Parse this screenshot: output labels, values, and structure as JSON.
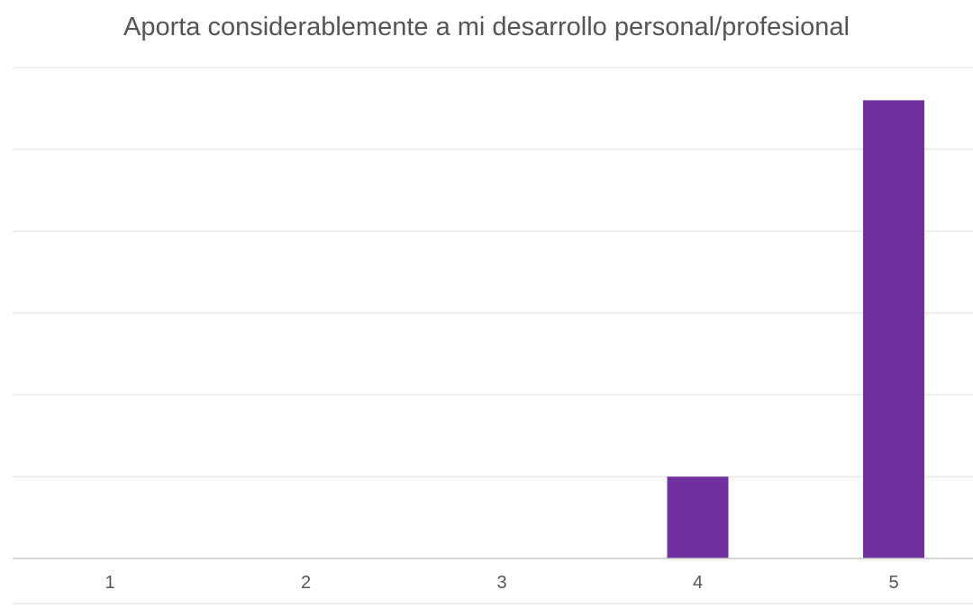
{
  "chart_data": {
    "type": "bar",
    "title": "Aporta considerablemente a mi desarrollo personal/profesional",
    "categories": [
      "1",
      "2",
      "3",
      "4",
      "5"
    ],
    "values": [
      0,
      0,
      0,
      1,
      5.6
    ],
    "ylim": [
      0,
      6
    ],
    "yticks_labeled": false,
    "grid": true,
    "legend": "none",
    "colors": {
      "bar": "#7030a0",
      "grid": "#e3e3e3",
      "axis_text": "#555555"
    }
  }
}
